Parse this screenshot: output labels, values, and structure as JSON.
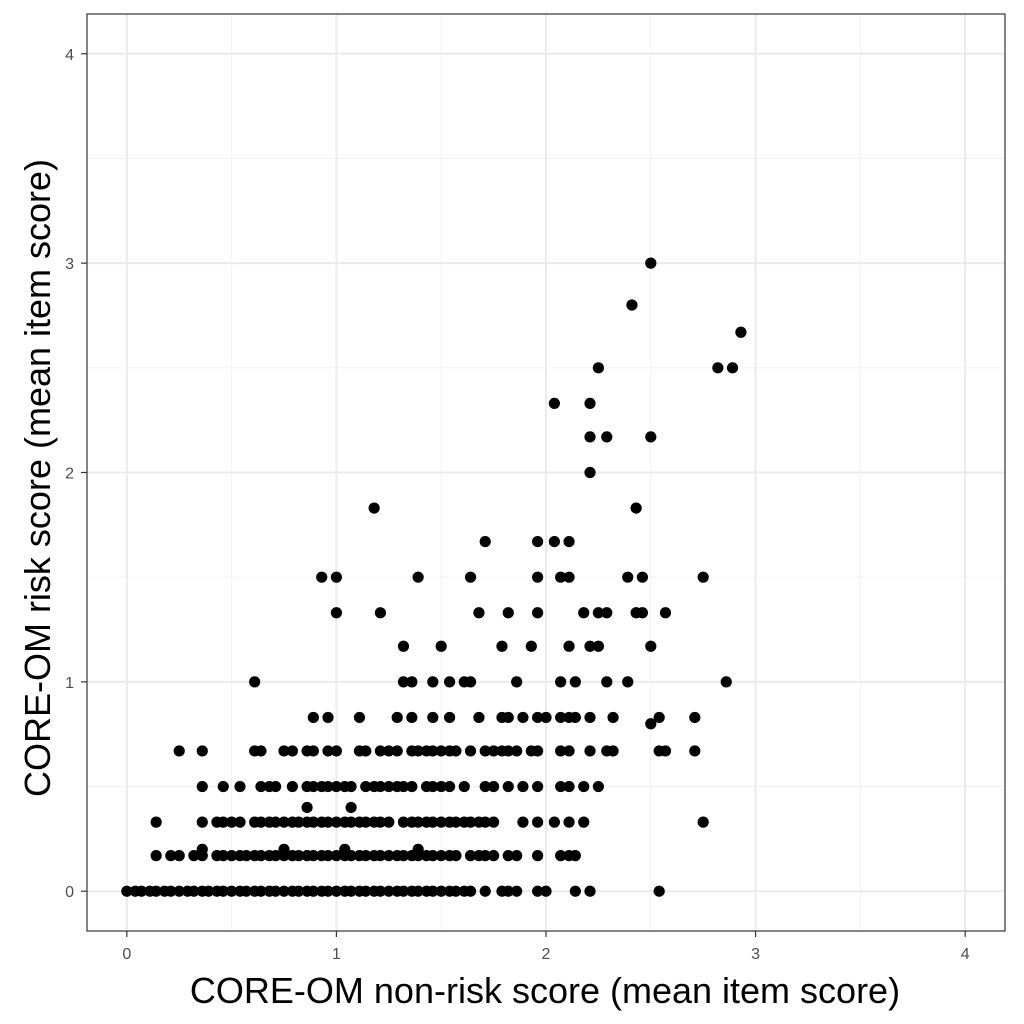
{
  "chart_data": {
    "type": "scatter",
    "title": "",
    "xlabel": "CORE-OM non-risk score (mean item score)",
    "ylabel": "CORE-OM risk score (mean item score)",
    "xlim": [
      -0.19,
      4.19
    ],
    "ylim": [
      -0.19,
      4.19
    ],
    "x_ticks": [
      0,
      1,
      2,
      3,
      4
    ],
    "y_ticks": [
      0,
      1,
      2,
      3,
      4
    ],
    "x_tick_labels": [
      "0",
      "1",
      "2",
      "3",
      "4"
    ],
    "y_tick_labels": [
      "0",
      "1",
      "2",
      "3",
      "4"
    ],
    "grid": true,
    "point_color": "#000000",
    "grid_color": "#ebebeb",
    "points": [
      [
        0.0,
        0
      ],
      [
        0.04,
        0
      ],
      [
        0.07,
        0
      ],
      [
        0.11,
        0
      ],
      [
        0.14,
        0
      ],
      [
        0.18,
        0
      ],
      [
        0.21,
        0
      ],
      [
        0.25,
        0
      ],
      [
        0.29,
        0
      ],
      [
        0.32,
        0
      ],
      [
        0.36,
        0
      ],
      [
        0.39,
        0
      ],
      [
        0.43,
        0
      ],
      [
        0.46,
        0
      ],
      [
        0.5,
        0
      ],
      [
        0.54,
        0
      ],
      [
        0.57,
        0
      ],
      [
        0.61,
        0
      ],
      [
        0.64,
        0
      ],
      [
        0.68,
        0
      ],
      [
        0.71,
        0
      ],
      [
        0.75,
        0
      ],
      [
        0.79,
        0
      ],
      [
        0.82,
        0
      ],
      [
        0.86,
        0
      ],
      [
        0.89,
        0
      ],
      [
        0.93,
        0
      ],
      [
        0.96,
        0
      ],
      [
        1.0,
        0
      ],
      [
        1.04,
        0
      ],
      [
        1.07,
        0
      ],
      [
        1.11,
        0
      ],
      [
        1.14,
        0
      ],
      [
        1.18,
        0
      ],
      [
        1.21,
        0
      ],
      [
        1.25,
        0
      ],
      [
        1.29,
        0
      ],
      [
        1.32,
        0
      ],
      [
        1.36,
        0
      ],
      [
        1.39,
        0
      ],
      [
        1.43,
        0
      ],
      [
        1.46,
        0
      ],
      [
        1.5,
        0
      ],
      [
        1.54,
        0
      ],
      [
        1.57,
        0
      ],
      [
        1.61,
        0
      ],
      [
        1.64,
        0
      ],
      [
        1.71,
        0
      ],
      [
        1.79,
        0
      ],
      [
        1.82,
        0
      ],
      [
        1.86,
        0
      ],
      [
        1.96,
        0
      ],
      [
        2.0,
        0
      ],
      [
        2.14,
        0
      ],
      [
        2.21,
        0
      ],
      [
        2.54,
        0
      ],
      [
        0.36,
        0.2
      ],
      [
        0.75,
        0.2
      ],
      [
        1.04,
        0.2
      ],
      [
        1.39,
        0.2
      ],
      [
        0.14,
        0.17
      ],
      [
        0.21,
        0.17
      ],
      [
        0.25,
        0.17
      ],
      [
        0.32,
        0.17
      ],
      [
        0.36,
        0.17
      ],
      [
        0.43,
        0.17
      ],
      [
        0.46,
        0.17
      ],
      [
        0.5,
        0.17
      ],
      [
        0.54,
        0.17
      ],
      [
        0.57,
        0.17
      ],
      [
        0.61,
        0.17
      ],
      [
        0.64,
        0.17
      ],
      [
        0.68,
        0.17
      ],
      [
        0.71,
        0.17
      ],
      [
        0.75,
        0.17
      ],
      [
        0.79,
        0.17
      ],
      [
        0.82,
        0.17
      ],
      [
        0.86,
        0.17
      ],
      [
        0.89,
        0.17
      ],
      [
        0.93,
        0.17
      ],
      [
        0.96,
        0.17
      ],
      [
        1.0,
        0.17
      ],
      [
        1.04,
        0.17
      ],
      [
        1.07,
        0.17
      ],
      [
        1.11,
        0.17
      ],
      [
        1.14,
        0.17
      ],
      [
        1.18,
        0.17
      ],
      [
        1.21,
        0.17
      ],
      [
        1.25,
        0.17
      ],
      [
        1.29,
        0.17
      ],
      [
        1.32,
        0.17
      ],
      [
        1.36,
        0.17
      ],
      [
        1.39,
        0.17
      ],
      [
        1.43,
        0.17
      ],
      [
        1.46,
        0.17
      ],
      [
        1.5,
        0.17
      ],
      [
        1.54,
        0.17
      ],
      [
        1.57,
        0.17
      ],
      [
        1.64,
        0.17
      ],
      [
        1.68,
        0.17
      ],
      [
        1.71,
        0.17
      ],
      [
        1.75,
        0.17
      ],
      [
        1.82,
        0.17
      ],
      [
        1.86,
        0.17
      ],
      [
        1.96,
        0.17
      ],
      [
        2.07,
        0.17
      ],
      [
        2.11,
        0.17
      ],
      [
        2.14,
        0.17
      ],
      [
        0.14,
        0.33
      ],
      [
        0.36,
        0.33
      ],
      [
        0.43,
        0.33
      ],
      [
        0.46,
        0.33
      ],
      [
        0.5,
        0.33
      ],
      [
        0.54,
        0.33
      ],
      [
        0.61,
        0.33
      ],
      [
        0.64,
        0.33
      ],
      [
        0.68,
        0.33
      ],
      [
        0.71,
        0.33
      ],
      [
        0.75,
        0.33
      ],
      [
        0.79,
        0.33
      ],
      [
        0.82,
        0.33
      ],
      [
        0.86,
        0.33
      ],
      [
        0.89,
        0.33
      ],
      [
        0.93,
        0.33
      ],
      [
        0.96,
        0.33
      ],
      [
        1.0,
        0.33
      ],
      [
        1.04,
        0.33
      ],
      [
        1.07,
        0.33
      ],
      [
        1.11,
        0.33
      ],
      [
        1.14,
        0.33
      ],
      [
        1.18,
        0.33
      ],
      [
        1.21,
        0.33
      ],
      [
        1.25,
        0.33
      ],
      [
        1.32,
        0.33
      ],
      [
        1.36,
        0.33
      ],
      [
        1.39,
        0.33
      ],
      [
        1.43,
        0.33
      ],
      [
        1.46,
        0.33
      ],
      [
        1.5,
        0.33
      ],
      [
        1.54,
        0.33
      ],
      [
        1.57,
        0.33
      ],
      [
        1.61,
        0.33
      ],
      [
        1.64,
        0.33
      ],
      [
        1.68,
        0.33
      ],
      [
        1.71,
        0.33
      ],
      [
        1.75,
        0.33
      ],
      [
        1.89,
        0.33
      ],
      [
        1.96,
        0.33
      ],
      [
        2.04,
        0.33
      ],
      [
        2.11,
        0.33
      ],
      [
        2.18,
        0.33
      ],
      [
        2.75,
        0.33
      ],
      [
        0.86,
        0.4
      ],
      [
        1.07,
        0.4
      ],
      [
        0.36,
        0.5
      ],
      [
        0.46,
        0.5
      ],
      [
        0.54,
        0.5
      ],
      [
        0.64,
        0.5
      ],
      [
        0.68,
        0.5
      ],
      [
        0.71,
        0.5
      ],
      [
        0.79,
        0.5
      ],
      [
        0.86,
        0.5
      ],
      [
        0.89,
        0.5
      ],
      [
        0.93,
        0.5
      ],
      [
        0.96,
        0.5
      ],
      [
        1.0,
        0.5
      ],
      [
        1.04,
        0.5
      ],
      [
        1.07,
        0.5
      ],
      [
        1.14,
        0.5
      ],
      [
        1.18,
        0.5
      ],
      [
        1.21,
        0.5
      ],
      [
        1.25,
        0.5
      ],
      [
        1.29,
        0.5
      ],
      [
        1.32,
        0.5
      ],
      [
        1.36,
        0.5
      ],
      [
        1.43,
        0.5
      ],
      [
        1.46,
        0.5
      ],
      [
        1.5,
        0.5
      ],
      [
        1.54,
        0.5
      ],
      [
        1.61,
        0.5
      ],
      [
        1.71,
        0.5
      ],
      [
        1.75,
        0.5
      ],
      [
        1.82,
        0.5
      ],
      [
        1.89,
        0.5
      ],
      [
        1.96,
        0.5
      ],
      [
        2.07,
        0.5
      ],
      [
        2.11,
        0.5
      ],
      [
        2.18,
        0.5
      ],
      [
        2.25,
        0.5
      ],
      [
        0.25,
        0.67
      ],
      [
        0.36,
        0.67
      ],
      [
        0.61,
        0.67
      ],
      [
        0.64,
        0.67
      ],
      [
        0.75,
        0.67
      ],
      [
        0.79,
        0.67
      ],
      [
        0.86,
        0.67
      ],
      [
        0.89,
        0.67
      ],
      [
        0.96,
        0.67
      ],
      [
        1.0,
        0.67
      ],
      [
        1.11,
        0.67
      ],
      [
        1.14,
        0.67
      ],
      [
        1.21,
        0.67
      ],
      [
        1.25,
        0.67
      ],
      [
        1.29,
        0.67
      ],
      [
        1.36,
        0.67
      ],
      [
        1.39,
        0.67
      ],
      [
        1.43,
        0.67
      ],
      [
        1.46,
        0.67
      ],
      [
        1.5,
        0.67
      ],
      [
        1.54,
        0.67
      ],
      [
        1.57,
        0.67
      ],
      [
        1.64,
        0.67
      ],
      [
        1.71,
        0.67
      ],
      [
        1.75,
        0.67
      ],
      [
        1.79,
        0.67
      ],
      [
        1.82,
        0.67
      ],
      [
        1.86,
        0.67
      ],
      [
        1.93,
        0.67
      ],
      [
        1.96,
        0.67
      ],
      [
        2.07,
        0.67
      ],
      [
        2.11,
        0.67
      ],
      [
        2.21,
        0.67
      ],
      [
        2.29,
        0.67
      ],
      [
        2.32,
        0.67
      ],
      [
        2.54,
        0.67
      ],
      [
        2.57,
        0.67
      ],
      [
        2.71,
        0.67
      ],
      [
        0.89,
        0.83
      ],
      [
        0.96,
        0.83
      ],
      [
        1.11,
        0.83
      ],
      [
        1.29,
        0.83
      ],
      [
        1.36,
        0.83
      ],
      [
        1.46,
        0.83
      ],
      [
        1.54,
        0.83
      ],
      [
        1.68,
        0.83
      ],
      [
        1.79,
        0.83
      ],
      [
        1.82,
        0.83
      ],
      [
        1.89,
        0.83
      ],
      [
        1.96,
        0.83
      ],
      [
        2.0,
        0.83
      ],
      [
        2.07,
        0.83
      ],
      [
        2.11,
        0.83
      ],
      [
        2.14,
        0.83
      ],
      [
        2.21,
        0.83
      ],
      [
        2.32,
        0.83
      ],
      [
        2.54,
        0.83
      ],
      [
        2.71,
        0.83
      ],
      [
        2.5,
        0.8
      ],
      [
        0.61,
        1.0
      ],
      [
        1.32,
        1.0
      ],
      [
        1.36,
        1.0
      ],
      [
        1.46,
        1.0
      ],
      [
        1.54,
        1.0
      ],
      [
        1.61,
        1.0
      ],
      [
        1.64,
        1.0
      ],
      [
        1.86,
        1.0
      ],
      [
        2.07,
        1.0
      ],
      [
        2.14,
        1.0
      ],
      [
        2.29,
        1.0
      ],
      [
        2.39,
        1.0
      ],
      [
        2.86,
        1.0
      ],
      [
        1.32,
        1.17
      ],
      [
        1.5,
        1.17
      ],
      [
        1.79,
        1.17
      ],
      [
        1.93,
        1.17
      ],
      [
        2.11,
        1.17
      ],
      [
        2.21,
        1.17
      ],
      [
        2.25,
        1.17
      ],
      [
        2.5,
        1.17
      ],
      [
        1.0,
        1.33
      ],
      [
        1.21,
        1.33
      ],
      [
        1.68,
        1.33
      ],
      [
        1.82,
        1.33
      ],
      [
        1.96,
        1.33
      ],
      [
        2.18,
        1.33
      ],
      [
        2.25,
        1.33
      ],
      [
        2.29,
        1.33
      ],
      [
        2.43,
        1.33
      ],
      [
        2.46,
        1.33
      ],
      [
        2.57,
        1.33
      ],
      [
        0.93,
        1.5
      ],
      [
        1.0,
        1.5
      ],
      [
        1.39,
        1.5
      ],
      [
        1.64,
        1.5
      ],
      [
        1.96,
        1.5
      ],
      [
        2.07,
        1.5
      ],
      [
        2.11,
        1.5
      ],
      [
        2.39,
        1.5
      ],
      [
        2.46,
        1.5
      ],
      [
        2.75,
        1.5
      ],
      [
        1.71,
        1.67
      ],
      [
        1.96,
        1.67
      ],
      [
        2.04,
        1.67
      ],
      [
        2.11,
        1.67
      ],
      [
        1.18,
        1.83
      ],
      [
        2.43,
        1.83
      ],
      [
        2.21,
        2.0
      ],
      [
        2.21,
        2.17
      ],
      [
        2.29,
        2.17
      ],
      [
        2.5,
        2.17
      ],
      [
        2.04,
        2.33
      ],
      [
        2.21,
        2.33
      ],
      [
        2.25,
        2.5
      ],
      [
        2.82,
        2.5
      ],
      [
        2.89,
        2.5
      ],
      [
        2.93,
        2.67
      ],
      [
        2.41,
        2.8
      ],
      [
        2.5,
        3.0
      ]
    ]
  }
}
